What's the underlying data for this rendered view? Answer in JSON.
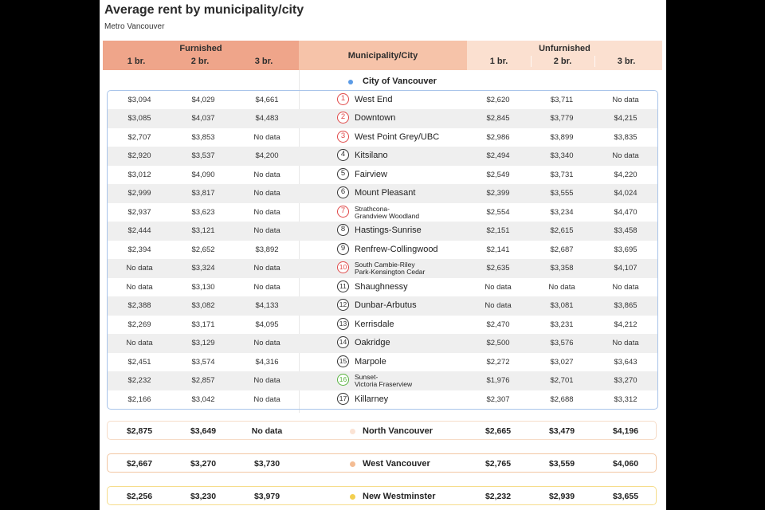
{
  "title": "Average rent by municipality/city",
  "subtitle": "Metro Vancouver",
  "headers": {
    "furnished": "Furnished",
    "unfurnished": "Unfurnished",
    "municipality": "Municipality/City",
    "bedrooms": [
      "1 br.",
      "2 br.",
      "3 br."
    ]
  },
  "city_group": {
    "label": "City of Vancouver",
    "dot_color": "#5b9be6"
  },
  "chart_data": {
    "type": "table",
    "title": "Average rent by municipality/city",
    "subtitle": "Metro Vancouver",
    "columns": [
      "Furnished 1 br.",
      "Furnished 2 br.",
      "Furnished 3 br.",
      "Municipality/City",
      "Unfurnished 1 br.",
      "Unfurnished 2 br.",
      "Unfurnished 3 br."
    ],
    "neighbourhoods": [
      {
        "num": "1",
        "name": "West End",
        "badge": "red",
        "furnished": [
          "$3,094",
          "$4,029",
          "$4,661"
        ],
        "unfurnished": [
          "$2,620",
          "$3,711",
          "No data"
        ]
      },
      {
        "num": "2",
        "name": "Downtown",
        "badge": "red",
        "furnished": [
          "$3,085",
          "$4,037",
          "$4,483"
        ],
        "unfurnished": [
          "$2,845",
          "$3,779",
          "$4,215"
        ]
      },
      {
        "num": "3",
        "name": "West Point Grey/UBC",
        "badge": "red",
        "furnished": [
          "$2,707",
          "$3,853",
          "No data"
        ],
        "unfurnished": [
          "$2,986",
          "$3,899",
          "$3,835"
        ]
      },
      {
        "num": "4",
        "name": "Kitsilano",
        "badge": "black",
        "furnished": [
          "$2,920",
          "$3,537",
          "$4,200"
        ],
        "unfurnished": [
          "$2,494",
          "$3,340",
          "No data"
        ]
      },
      {
        "num": "5",
        "name": "Fairview",
        "badge": "black",
        "furnished": [
          "$3,012",
          "$4,090",
          "No data"
        ],
        "unfurnished": [
          "$2,549",
          "$3,731",
          "$4,220"
        ]
      },
      {
        "num": "6",
        "name": "Mount Pleasant",
        "badge": "black",
        "furnished": [
          "$2,999",
          "$3,817",
          "No data"
        ],
        "unfurnished": [
          "$2,399",
          "$3,555",
          "$4,024"
        ]
      },
      {
        "num": "7",
        "name": "Strathcona-\nGrandview Woodland",
        "badge": "red",
        "furnished": [
          "$2,937",
          "$3,623",
          "No data"
        ],
        "unfurnished": [
          "$2,554",
          "$3,234",
          "$4,470"
        ]
      },
      {
        "num": "8",
        "name": "Hastings-Sunrise",
        "badge": "black",
        "furnished": [
          "$2,444",
          "$3,121",
          "No data"
        ],
        "unfurnished": [
          "$2,151",
          "$2,615",
          "$3,458"
        ]
      },
      {
        "num": "9",
        "name": "Renfrew-Collingwood",
        "badge": "black",
        "furnished": [
          "$2,394",
          "$2,652",
          "$3,892"
        ],
        "unfurnished": [
          "$2,141",
          "$2,687",
          "$3,695"
        ]
      },
      {
        "num": "10",
        "name": "South Cambie-Riley\nPark-Kensington Cedar",
        "badge": "red",
        "furnished": [
          "No data",
          "$3,324",
          "No data"
        ],
        "unfurnished": [
          "$2,635",
          "$3,358",
          "$4,107"
        ]
      },
      {
        "num": "11",
        "name": "Shaughnessy",
        "badge": "black",
        "furnished": [
          "No data",
          "$3,130",
          "No data"
        ],
        "unfurnished": [
          "No data",
          "No data",
          "No data"
        ]
      },
      {
        "num": "12",
        "name": "Dunbar-Arbutus",
        "badge": "black",
        "furnished": [
          "$2,388",
          "$3,082",
          "$4,133"
        ],
        "unfurnished": [
          "No data",
          "$3,081",
          "$3,865"
        ]
      },
      {
        "num": "13",
        "name": "Kerrisdale",
        "badge": "black",
        "furnished": [
          "$2,269",
          "$3,171",
          "$4,095"
        ],
        "unfurnished": [
          "$2,470",
          "$3,231",
          "$4,212"
        ]
      },
      {
        "num": "14",
        "name": "Oakridge",
        "badge": "black",
        "furnished": [
          "No data",
          "$3,129",
          "No data"
        ],
        "unfurnished": [
          "$2,500",
          "$3,576",
          "No data"
        ]
      },
      {
        "num": "15",
        "name": "Marpole",
        "badge": "black",
        "furnished": [
          "$2,451",
          "$3,574",
          "$4,316"
        ],
        "unfurnished": [
          "$2,272",
          "$3,027",
          "$3,643"
        ]
      },
      {
        "num": "16",
        "name": "Sunset-\nVictoria Fraserview",
        "badge": "green",
        "furnished": [
          "$2,232",
          "$2,857",
          "No data"
        ],
        "unfurnished": [
          "$1,976",
          "$2,701",
          "$3,270"
        ]
      },
      {
        "num": "17",
        "name": "Killarney",
        "badge": "black",
        "furnished": [
          "$2,166",
          "$3,042",
          "No data"
        ],
        "unfurnished": [
          "$2,307",
          "$2,688",
          "$3,312"
        ]
      }
    ],
    "regions": [
      {
        "name": "North Vancouver",
        "dot_color": "#fbe3d4",
        "border_color": "#f6dcc8",
        "furnished": [
          "$2,875",
          "$3,649",
          "No data"
        ],
        "unfurnished": [
          "$2,665",
          "$3,479",
          "$4,196"
        ]
      },
      {
        "name": "West Vancouver",
        "dot_color": "#f4bc93",
        "border_color": "#f2c7a3",
        "furnished": [
          "$2,667",
          "$3,270",
          "$3,730"
        ],
        "unfurnished": [
          "$2,765",
          "$3,559",
          "$4,060"
        ]
      },
      {
        "name": "New Westminster",
        "dot_color": "#f3cf4f",
        "border_color": "#f6dd8c",
        "furnished": [
          "$2,256",
          "$3,230",
          "$3,979"
        ],
        "unfurnished": [
          "$2,232",
          "$2,939",
          "$3,655"
        ]
      }
    ]
  }
}
